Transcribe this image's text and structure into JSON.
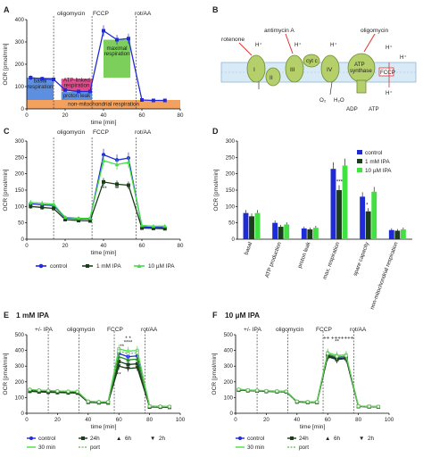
{
  "figure": {
    "panel_letters": [
      "A",
      "B",
      "C",
      "D",
      "E",
      "F"
    ],
    "injections": [
      "oligomycin",
      "FCCP",
      "rot/AA"
    ],
    "injections_E": [
      "+/- IPA",
      "oligomycin",
      "FCCP",
      "rot/AA"
    ],
    "colors": {
      "control": "#1f2bd6",
      "ipa1": "#1b3d1b",
      "ipa10": "#43e043",
      "orange": "#f2a15e",
      "blue_fill": "#5c8fe0",
      "pink": "#e04b8c",
      "green_fill": "#7bcf5a"
    }
  },
  "panelA": {
    "letter": "A",
    "regions": {
      "basal": "basal\nrespiration",
      "atp": "ATP-linked\nrespiration",
      "proton": "proton leak",
      "maximal": "maximal\nrespiration",
      "nonmito": "non-mitochondrial respiration"
    }
  },
  "panelB": {
    "letter": "B",
    "labels": {
      "rotenone": "rotenone",
      "antimycin": "antimycin A",
      "oligomycin": "oligomycin",
      "I": "I",
      "II": "II",
      "III": "III",
      "cytc": "cyt c",
      "IV": "IV",
      "atp_synthase": "ATP\nsynthase",
      "fccp": "FCCP",
      "o2": "O₂",
      "h2o": "H₂O",
      "adp": "ADP",
      "atp": "ATP",
      "h": "H⁺"
    }
  },
  "legendC": {
    "control": "control",
    "ipa1": "1 mM IPA",
    "ipa10": "10 µM IPA"
  },
  "legendD": {
    "control": "control",
    "ipa1": "1 mM IPA",
    "ipa10": "10 µM IPA"
  },
  "panelE_title": "1 mM IPA",
  "panelF_title": "10 µM IPA",
  "legendE": {
    "control": "control",
    "h24": "24h",
    "h6": "6h",
    "h2": "2h",
    "m30": "30 min",
    "port": "port"
  },
  "chart_data": [
    {
      "panel": "A",
      "type": "line",
      "xlabel": "time [min]",
      "ylabel": "OCR [pmol/min]",
      "xlim": [
        0,
        80
      ],
      "ylim": [
        0,
        400
      ],
      "xticks": [
        0,
        20,
        40,
        60,
        80
      ],
      "yticks": [
        0,
        100,
        200,
        300,
        400
      ],
      "series": [
        {
          "x": [
            2,
            8,
            14,
            20,
            27,
            33,
            40,
            47,
            53,
            60,
            66,
            72
          ],
          "values": [
            140,
            135,
            132,
            85,
            78,
            78,
            350,
            310,
            315,
            40,
            38,
            38
          ]
        }
      ]
    },
    {
      "panel": "C",
      "type": "line",
      "xlabel": "time [min]",
      "ylabel": "OCR [pmol/min]",
      "xlim": [
        0,
        80
      ],
      "ylim": [
        0,
        300
      ],
      "xticks": [
        0,
        20,
        40,
        60,
        80
      ],
      "yticks": [
        0,
        50,
        100,
        150,
        200,
        250,
        300
      ],
      "x": [
        2,
        8,
        14,
        20,
        27,
        33,
        40,
        47,
        53,
        60,
        66,
        72
      ],
      "series": [
        {
          "name": "control",
          "values": [
            108,
            105,
            103,
            65,
            62,
            62,
            258,
            242,
            248,
            38,
            36,
            36
          ]
        },
        {
          "name": "1 mM IPA",
          "values": [
            100,
            97,
            94,
            60,
            57,
            56,
            175,
            168,
            165,
            34,
            33,
            32
          ]
        },
        {
          "name": "10 µM IPA",
          "values": [
            112,
            110,
            107,
            67,
            64,
            64,
            240,
            228,
            235,
            42,
            40,
            40
          ]
        }
      ],
      "annotations": [
        "***",
        "**"
      ]
    },
    {
      "panel": "D",
      "type": "bar",
      "ylabel": "OCR [pmol/min]",
      "ylim": [
        0,
        300
      ],
      "yticks": [
        0,
        50,
        100,
        150,
        200,
        250,
        300
      ],
      "categories": [
        "basal",
        "ATP production",
        "proton leak",
        "max. respiration",
        "spare capacity",
        "non-mitochondrial respiration"
      ],
      "series": [
        {
          "name": "control",
          "values": [
            80,
            50,
            33,
            215,
            130,
            28
          ]
        },
        {
          "name": "1 mM IPA",
          "values": [
            70,
            38,
            30,
            150,
            85,
            26
          ]
        },
        {
          "name": "10 µM IPA",
          "values": [
            80,
            45,
            35,
            225,
            145,
            30
          ]
        }
      ],
      "annotations": [
        "***",
        "*"
      ]
    },
    {
      "panel": "E",
      "type": "line",
      "xlabel": "time [min]",
      "ylabel": "OCR [pmol/min]",
      "xlim": [
        0,
        100
      ],
      "ylim": [
        0,
        500
      ],
      "xticks": [
        0,
        20,
        40,
        60,
        80,
        100
      ],
      "yticks": [
        0,
        100,
        200,
        300,
        400,
        500
      ],
      "x": [
        2,
        8,
        14,
        20,
        27,
        33,
        40,
        47,
        53,
        60,
        66,
        72,
        80,
        87,
        93
      ],
      "series": [
        {
          "name": "control",
          "values": [
            150,
            145,
            143,
            140,
            138,
            137,
            75,
            72,
            72,
            380,
            360,
            365,
            45,
            43,
            42
          ]
        },
        {
          "name": "24h",
          "values": [
            140,
            136,
            134,
            132,
            130,
            129,
            70,
            67,
            66,
            330,
            310,
            315,
            40,
            39,
            38
          ]
        },
        {
          "name": "6h",
          "values": [
            148,
            143,
            141,
            138,
            136,
            135,
            73,
            70,
            70,
            360,
            340,
            345,
            44,
            42,
            41
          ]
        },
        {
          "name": "2h",
          "values": [
            146,
            142,
            140,
            137,
            135,
            134,
            72,
            69,
            69,
            300,
            285,
            290,
            43,
            41,
            40
          ]
        },
        {
          "name": "30 min",
          "values": [
            152,
            147,
            145,
            142,
            140,
            139,
            76,
            73,
            73,
            410,
            395,
            400,
            46,
            44,
            43
          ]
        },
        {
          "name": "port",
          "values": [
            151,
            146,
            144,
            141,
            139,
            138,
            75,
            72,
            72,
            395,
            380,
            385,
            45,
            43,
            42
          ]
        }
      ],
      "annotations": [
        "* *",
        "****",
        "**",
        "**"
      ]
    },
    {
      "panel": "F",
      "type": "line",
      "xlabel": "time [min]",
      "ylabel": "OCR [pmol/min]",
      "xlim": [
        0,
        100
      ],
      "ylim": [
        0,
        500
      ],
      "xticks": [
        0,
        20,
        40,
        60,
        80,
        100
      ],
      "yticks": [
        0,
        100,
        200,
        300,
        400,
        500
      ],
      "x": [
        2,
        8,
        14,
        20,
        27,
        33,
        40,
        47,
        53,
        60,
        66,
        72,
        80,
        87,
        93
      ],
      "series": [
        {
          "name": "control",
          "values": [
            150,
            146,
            144,
            141,
            139,
            138,
            74,
            71,
            71,
            370,
            350,
            355,
            44,
            42,
            41
          ]
        },
        {
          "name": "24h",
          "values": [
            148,
            144,
            142,
            139,
            137,
            136,
            72,
            69,
            69,
            360,
            342,
            348,
            43,
            41,
            40
          ]
        },
        {
          "name": "6h",
          "values": [
            151,
            147,
            145,
            142,
            140,
            139,
            75,
            72,
            72,
            375,
            358,
            362,
            45,
            43,
            42
          ]
        },
        {
          "name": "2h",
          "values": [
            149,
            145,
            143,
            140,
            138,
            137,
            73,
            70,
            70,
            365,
            346,
            352,
            44,
            42,
            41
          ]
        },
        {
          "name": "30 min",
          "values": [
            153,
            148,
            146,
            143,
            141,
            140,
            76,
            73,
            73,
            385,
            368,
            372,
            46,
            44,
            43
          ]
        },
        {
          "name": "port",
          "values": [
            152,
            147,
            145,
            142,
            140,
            139,
            75,
            72,
            72,
            380,
            362,
            366,
            45,
            43,
            42
          ]
        }
      ],
      "annotations": [
        "++ +++++++",
        "**"
      ]
    }
  ]
}
